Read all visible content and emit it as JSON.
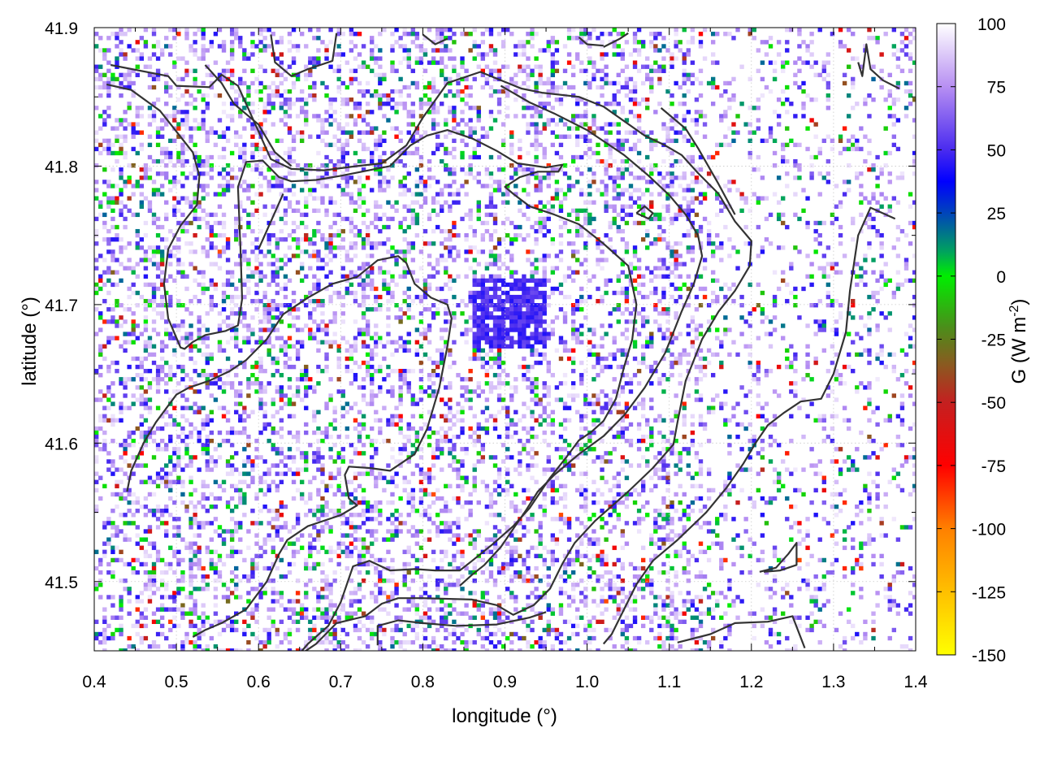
{
  "chart_data": {
    "type": "heatmap",
    "xlabel": "longitude (°)",
    "ylabel": "latitude (°)",
    "colorbar_label": "G (W m-2)",
    "colorbar_label_main": "G (W m",
    "colorbar_label_exp": "-2",
    "colorbar_label_close": ")",
    "xlim": [
      0.4,
      1.4
    ],
    "ylim": [
      41.45,
      41.9
    ],
    "clim": [
      -150,
      100
    ],
    "x_ticks": [
      0.4,
      0.5,
      0.6,
      0.7,
      0.8,
      0.9,
      1.0,
      1.1,
      1.2,
      1.3,
      1.4
    ],
    "x_tick_labels": [
      "0.4",
      "0.5",
      "0.6",
      "0.7",
      "0.8",
      "0.9",
      "1.0",
      "1.1",
      "1.2",
      "1.3",
      "1.4"
    ],
    "y_ticks": [
      41.5,
      41.6,
      41.7,
      41.8,
      41.9
    ],
    "y_tick_labels": [
      "41.5",
      "41.6",
      "41.7",
      "41.8",
      "41.9"
    ],
    "cb_ticks": [
      100,
      75,
      50,
      25,
      0,
      -25,
      -50,
      -75,
      -100,
      -125,
      -150
    ],
    "cb_tick_labels": [
      "100",
      "75",
      "50",
      "25",
      "0",
      "-25",
      "-50",
      "-75",
      "-100",
      "-125",
      "-150"
    ],
    "grid": true,
    "colormap": [
      {
        "value": 100,
        "color": "#ffffff"
      },
      {
        "value": 75,
        "color": "#b78ff2"
      },
      {
        "value": 50,
        "color": "#4a2bef"
      },
      {
        "value": 37,
        "color": "#0000ff"
      },
      {
        "value": 25,
        "color": "#0044bb"
      },
      {
        "value": 10,
        "color": "#00a060"
      },
      {
        "value": 0,
        "color": "#00ee00"
      },
      {
        "value": -20,
        "color": "#4a8f1a"
      },
      {
        "value": -35,
        "color": "#8a5a20"
      },
      {
        "value": -50,
        "color": "#c42020"
      },
      {
        "value": -75,
        "color": "#ff0000"
      },
      {
        "value": -100,
        "color": "#ff8000"
      },
      {
        "value": -150,
        "color": "#ffff00"
      }
    ],
    "contours": [
      [
        [
          0.42,
          41.873
        ],
        [
          0.49,
          41.865
        ],
        [
          0.5,
          41.858
        ],
        [
          0.54,
          41.857
        ],
        [
          0.555,
          41.866
        ],
        [
          0.575,
          41.858
        ],
        [
          0.6,
          41.825
        ],
        [
          0.615,
          41.805
        ],
        [
          0.64,
          41.798
        ],
        [
          0.68,
          41.797
        ],
        [
          0.72,
          41.8
        ],
        [
          0.75,
          41.802
        ],
        [
          0.78,
          41.815
        ],
        [
          0.8,
          41.835
        ],
        [
          0.83,
          41.86
        ],
        [
          0.87,
          41.868
        ],
        [
          0.92,
          41.856
        ],
        [
          0.945,
          41.853
        ],
        [
          0.99,
          41.85
        ],
        [
          1.02,
          41.843
        ],
        [
          1.07,
          41.822
        ],
        [
          1.095,
          41.815
        ],
        [
          1.115,
          41.808
        ],
        [
          1.135,
          41.795
        ],
        [
          1.16,
          41.78
        ],
        [
          1.18,
          41.76
        ],
        [
          1.2,
          41.746
        ],
        [
          1.198,
          41.728
        ],
        [
          1.18,
          41.71
        ],
        [
          1.16,
          41.695
        ],
        [
          1.14,
          41.675
        ],
        [
          1.12,
          41.645
        ],
        [
          1.11,
          41.615
        ],
        [
          1.105,
          41.599
        ],
        [
          1.08,
          41.582
        ],
        [
          1.05,
          41.565
        ],
        [
          1.01,
          41.544
        ],
        [
          0.985,
          41.528
        ],
        [
          0.97,
          41.513
        ],
        [
          0.955,
          41.495
        ],
        [
          0.935,
          41.483
        ],
        [
          0.91,
          41.476
        ],
        [
          0.89,
          41.483
        ],
        [
          0.86,
          41.487
        ],
        [
          0.8,
          41.488
        ],
        [
          0.77,
          41.488
        ],
        [
          0.75,
          41.484
        ],
        [
          0.73,
          41.475
        ],
        [
          0.695,
          41.47
        ],
        [
          0.67,
          41.455
        ],
        [
          0.655,
          41.449
        ]
      ],
      [
        [
          0.415,
          41.859
        ],
        [
          0.445,
          41.855
        ],
        [
          0.48,
          41.84
        ],
        [
          0.52,
          41.81
        ],
        [
          0.528,
          41.793
        ],
        [
          0.525,
          41.772
        ],
        [
          0.505,
          41.757
        ],
        [
          0.49,
          41.74
        ],
        [
          0.485,
          41.715
        ],
        [
          0.49,
          41.69
        ],
        [
          0.505,
          41.669
        ],
        [
          0.51,
          41.668
        ],
        [
          0.52,
          41.673
        ],
        [
          0.535,
          41.678
        ],
        [
          0.56,
          41.681
        ],
        [
          0.575,
          41.685
        ],
        [
          0.58,
          41.704
        ],
        [
          0.578,
          41.74
        ],
        [
          0.575,
          41.785
        ],
        [
          0.585,
          41.803
        ],
        [
          0.605,
          41.804
        ],
        [
          0.625,
          41.792
        ],
        [
          0.64,
          41.789
        ],
        [
          0.67,
          41.79
        ],
        [
          0.7,
          41.793
        ],
        [
          0.76,
          41.8
        ],
        [
          0.785,
          41.815
        ],
        [
          0.805,
          41.822
        ],
        [
          0.83,
          41.826
        ],
        [
          0.86,
          41.82
        ],
        [
          0.89,
          41.811
        ],
        [
          0.915,
          41.802
        ],
        [
          0.95,
          41.799
        ],
        [
          0.97,
          41.801
        ],
        [
          0.965,
          41.796
        ],
        [
          0.94,
          41.796
        ],
        [
          0.918,
          41.792
        ],
        [
          0.9,
          41.785
        ],
        [
          0.91,
          41.78
        ],
        [
          0.93,
          41.771
        ],
        [
          0.96,
          41.765
        ],
        [
          0.99,
          41.758
        ],
        [
          1.02,
          41.744
        ],
        [
          1.05,
          41.728
        ],
        [
          1.06,
          41.7
        ],
        [
          1.055,
          41.675
        ],
        [
          1.045,
          41.655
        ],
        [
          1.035,
          41.632
        ],
        [
          1.02,
          41.616
        ],
        [
          1.005,
          41.608
        ],
        [
          0.99,
          41.602
        ],
        [
          0.975,
          41.59
        ],
        [
          0.955,
          41.575
        ],
        [
          0.93,
          41.553
        ],
        [
          0.91,
          41.54
        ],
        [
          0.885,
          41.527
        ],
        [
          0.86,
          41.515
        ],
        [
          0.845,
          41.508
        ],
        [
          0.815,
          41.508
        ],
        [
          0.79,
          41.509
        ],
        [
          0.76,
          41.508
        ],
        [
          0.735,
          41.515
        ],
        [
          0.715,
          41.511
        ],
        [
          0.7,
          41.485
        ],
        [
          0.685,
          41.468
        ],
        [
          0.66,
          41.455
        ],
        [
          0.65,
          41.448
        ]
      ],
      [
        [
          0.44,
          41.565
        ],
        [
          0.445,
          41.58
        ],
        [
          0.46,
          41.6
        ],
        [
          0.475,
          41.615
        ],
        [
          0.5,
          41.635
        ],
        [
          0.515,
          41.64
        ],
        [
          0.54,
          41.645
        ],
        [
          0.565,
          41.652
        ],
        [
          0.585,
          41.66
        ],
        [
          0.61,
          41.675
        ],
        [
          0.63,
          41.693
        ],
        [
          0.66,
          41.705
        ],
        [
          0.69,
          41.715
        ],
        [
          0.72,
          41.72
        ],
        [
          0.745,
          41.732
        ],
        [
          0.77,
          41.735
        ],
        [
          0.78,
          41.73
        ],
        [
          0.79,
          41.715
        ],
        [
          0.81,
          41.705
        ],
        [
          0.83,
          41.7
        ],
        [
          0.835,
          41.69
        ],
        [
          0.83,
          41.67
        ],
        [
          0.82,
          41.64
        ],
        [
          0.805,
          41.61
        ],
        [
          0.79,
          41.592
        ],
        [
          0.76,
          41.58
        ],
        [
          0.735,
          41.582
        ],
        [
          0.71,
          41.583
        ],
        [
          0.705,
          41.577
        ],
        [
          0.71,
          41.56
        ],
        [
          0.72,
          41.555
        ],
        [
          0.7,
          41.548
        ],
        [
          0.66,
          41.54
        ],
        [
          0.635,
          41.53
        ],
        [
          0.625,
          41.52
        ],
        [
          0.61,
          41.5
        ],
        [
          0.585,
          41.48
        ],
        [
          0.555,
          41.47
        ],
        [
          0.535,
          41.465
        ],
        [
          0.52,
          41.46
        ]
      ],
      [
        [
          0.535,
          41.873
        ],
        [
          0.555,
          41.86
        ],
        [
          0.57,
          41.845
        ],
        [
          0.6,
          41.83
        ],
        [
          0.62,
          41.81
        ],
        [
          0.64,
          41.8
        ]
      ],
      [
        [
          1.09,
          41.842
        ],
        [
          1.12,
          41.827
        ],
        [
          1.135,
          41.813
        ],
        [
          1.16,
          41.787
        ],
        [
          1.18,
          41.765
        ]
      ],
      [
        [
          0.63,
          41.78
        ],
        [
          0.615,
          41.76
        ],
        [
          0.6,
          41.74
        ]
      ],
      [
        [
          1.375,
          41.762
        ],
        [
          1.345,
          41.77
        ],
        [
          1.33,
          41.75
        ],
        [
          1.32,
          41.71
        ],
        [
          1.315,
          41.68
        ],
        [
          1.3,
          41.65
        ],
        [
          1.285,
          41.632
        ],
        [
          1.26,
          41.63
        ],
        [
          1.24,
          41.622
        ],
        [
          1.22,
          41.613
        ],
        [
          1.205,
          41.6
        ],
        [
          1.19,
          41.585
        ],
        [
          1.17,
          41.568
        ],
        [
          1.145,
          41.55
        ],
        [
          1.11,
          41.53
        ],
        [
          1.08,
          41.515
        ],
        [
          1.06,
          41.498
        ],
        [
          1.045,
          41.48
        ],
        [
          1.03,
          41.462
        ],
        [
          1.02,
          41.455
        ]
      ],
      [
        [
          0.895,
          41.858
        ],
        [
          0.93,
          41.846
        ],
        [
          0.96,
          41.838
        ],
        [
          1.0,
          41.826
        ],
        [
          1.045,
          41.808
        ],
        [
          1.075,
          41.793
        ],
        [
          1.1,
          41.779
        ],
        [
          1.12,
          41.765
        ],
        [
          1.135,
          41.75
        ],
        [
          1.14,
          41.735
        ],
        [
          1.13,
          41.715
        ],
        [
          1.115,
          41.695
        ],
        [
          1.105,
          41.68
        ],
        [
          1.095,
          41.665
        ],
        [
          1.07,
          41.64
        ],
        [
          1.045,
          41.62
        ],
        [
          1.02,
          41.605
        ],
        [
          0.99,
          41.592
        ],
        [
          0.96,
          41.577
        ],
        [
          0.94,
          41.565
        ],
        [
          0.925,
          41.551
        ],
        [
          0.91,
          41.538
        ],
        [
          0.895,
          41.525
        ],
        [
          0.875,
          41.512
        ],
        [
          0.86,
          41.505
        ],
        [
          0.845,
          41.497
        ]
      ],
      [
        [
          1.21,
          41.507
        ],
        [
          1.23,
          41.51
        ],
        [
          1.245,
          41.52
        ],
        [
          1.255,
          41.528
        ],
        [
          1.255,
          41.512
        ],
        [
          1.235,
          41.508
        ],
        [
          1.215,
          41.507
        ]
      ],
      [
        [
          1.11,
          41.456
        ],
        [
          1.15,
          41.462
        ],
        [
          1.18,
          41.47
        ],
        [
          1.22,
          41.471
        ],
        [
          1.25,
          41.475
        ],
        [
          1.265,
          41.452
        ]
      ],
      [
        [
          0.745,
          41.454
        ],
        [
          0.745,
          41.468
        ],
        [
          0.77,
          41.472
        ],
        [
          0.8,
          41.47
        ],
        [
          0.84,
          41.468
        ],
        [
          0.89,
          41.469
        ],
        [
          0.93,
          41.474
        ],
        [
          0.95,
          41.478
        ]
      ],
      [
        [
          0.615,
          41.895
        ],
        [
          0.62,
          41.875
        ],
        [
          0.64,
          41.865
        ],
        [
          0.66,
          41.87
        ],
        [
          0.69,
          41.876
        ],
        [
          0.695,
          41.896
        ]
      ],
      [
        [
          0.8,
          41.895
        ],
        [
          0.815,
          41.888
        ],
        [
          0.83,
          41.892
        ]
      ],
      [
        [
          0.99,
          41.893
        ],
        [
          1.0,
          41.888
        ],
        [
          1.02,
          41.887
        ]
      ],
      [
        [
          1.02,
          41.886
        ],
        [
          1.04,
          41.892
        ],
        [
          1.05,
          41.896
        ]
      ],
      [
        [
          1.33,
          41.875
        ],
        [
          1.335,
          41.865
        ],
        [
          1.34,
          41.888
        ],
        [
          1.345,
          41.87
        ],
        [
          1.36,
          41.862
        ],
        [
          1.38,
          41.856
        ]
      ],
      [
        [
          1.06,
          41.766
        ],
        [
          1.075,
          41.762
        ],
        [
          1.08,
          41.766
        ],
        [
          1.07,
          41.771
        ],
        [
          1.06,
          41.766
        ]
      ]
    ],
    "blue_core": {
      "lon": [
        0.84,
        0.96
      ],
      "lat": [
        41.665,
        41.73
      ]
    }
  }
}
